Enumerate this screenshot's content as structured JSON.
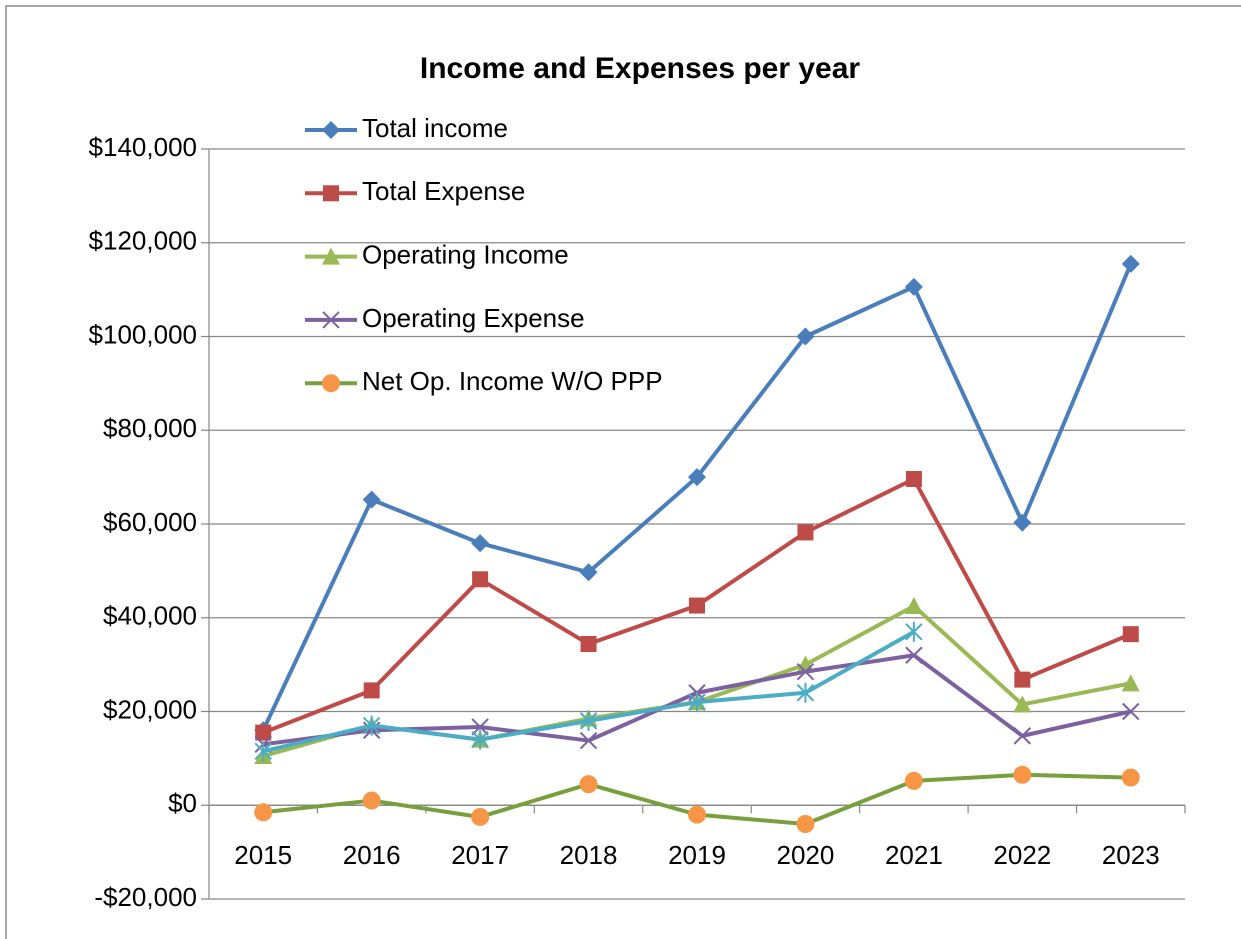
{
  "chart_data": {
    "type": "line",
    "title": "Income and Expenses per year",
    "categories": [
      "2015",
      "2016",
      "2017",
      "2018",
      "2019",
      "2020",
      "2021",
      "2022",
      "2023"
    ],
    "series": [
      {
        "name": "Total income",
        "color": "#4a7ebb",
        "marker": "diamond",
        "values": [
          16000,
          65200,
          55900,
          49700,
          70000,
          100000,
          110600,
          60300,
          115500
        ]
      },
      {
        "name": "Total Expense",
        "color": "#be4b48",
        "marker": "square",
        "values": [
          15500,
          24500,
          48200,
          34400,
          42600,
          58200,
          69600,
          26800,
          36500
        ]
      },
      {
        "name": "Operating Income",
        "color": "#98b954",
        "marker": "triangle",
        "values": [
          10500,
          17000,
          14000,
          18500,
          22000,
          30000,
          42500,
          21500,
          26000
        ]
      },
      {
        "name": "Operating Expense",
        "color": "#7d60a0",
        "marker": "x",
        "values": [
          13000,
          16000,
          16700,
          13800,
          24000,
          28500,
          32000,
          14800,
          20000
        ]
      },
      {
        "name": "Net Op. Income W/O PPP",
        "color": "#77a03c",
        "marker_color": "#f79646",
        "marker": "circle",
        "values": [
          -1500,
          1000,
          -2500,
          4500,
          -2000,
          -4000,
          5200,
          6500,
          5900
        ]
      },
      {
        "color": "#4bacc6",
        "marker": "star",
        "values": [
          11500,
          17000,
          14000,
          18000,
          22000,
          24000,
          37000,
          null,
          null
        ]
      }
    ],
    "ylim": [
      -20000,
      140000
    ],
    "yticks": [
      {
        "value": -20000,
        "label": "-$20,000"
      },
      {
        "value": 0,
        "label": "$0"
      },
      {
        "value": 20000,
        "label": "$20,000"
      },
      {
        "value": 40000,
        "label": "$40,000"
      },
      {
        "value": 60000,
        "label": "$60,000"
      },
      {
        "value": 80000,
        "label": "$80,000"
      },
      {
        "value": 100000,
        "label": "$100,000"
      },
      {
        "value": 120000,
        "label": "$120,000"
      },
      {
        "value": 140000,
        "label": "$140,000"
      }
    ],
    "grid": true,
    "legend": "top-left"
  }
}
